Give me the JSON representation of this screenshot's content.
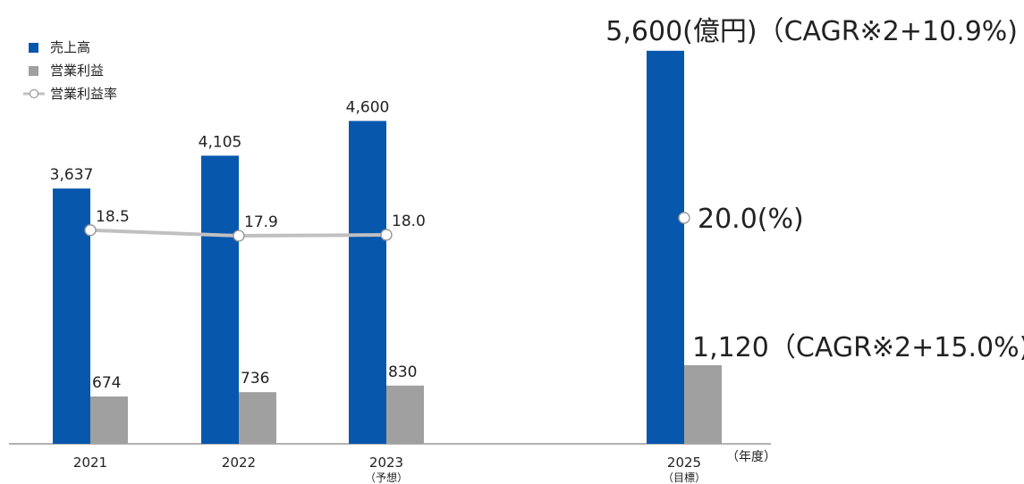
{
  "colors": {
    "sales": "#0757ad",
    "profit": "#a0a0a0",
    "margin_line": "#c0c0c0",
    "marker_stroke": "#999999"
  },
  "legend": {
    "sales": "売上高",
    "profit": "営業利益",
    "margin": "営業利益率"
  },
  "x_unit_label": "（年度）",
  "chart_data": {
    "type": "bar",
    "categories": [
      "2021",
      "2022",
      "2023",
      "2025"
    ],
    "category_notes": [
      "",
      "",
      "（予想）",
      "（目標）"
    ],
    "series": [
      {
        "name": "売上高",
        "values": [
          3637,
          4105,
          4600,
          5600
        ],
        "labels": [
          "3,637",
          "4,105",
          "4,600",
          "5,600"
        ]
      },
      {
        "name": "営業利益",
        "values": [
          674,
          736,
          830,
          1120
        ],
        "labels": [
          "674",
          "736",
          "830",
          "1,120"
        ]
      },
      {
        "name": "営業利益率",
        "type": "line",
        "values": [
          18.5,
          17.9,
          18.0,
          20.0
        ],
        "labels": [
          "18.5",
          "17.9",
          "18.0",
          "20.0"
        ]
      }
    ],
    "target_annotations": {
      "sales": "(億円)（CAGR※2+10.9%)",
      "margin": "(%)",
      "profit": "（CAGR※2+15.0%)"
    },
    "ylim": [
      0,
      5600
    ],
    "grid": false,
    "legend_position": "top-left"
  }
}
